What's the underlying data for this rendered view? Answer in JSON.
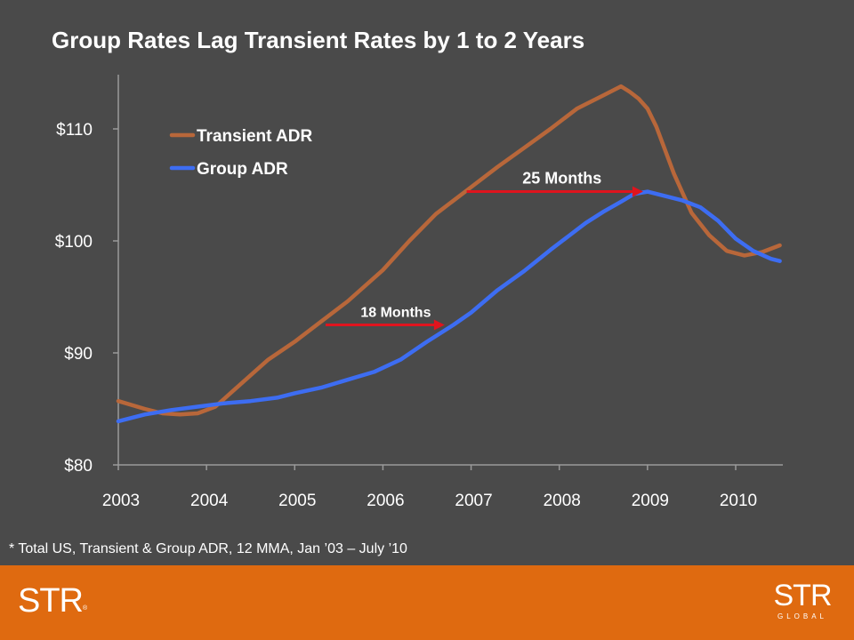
{
  "page": {
    "footnote": "* Total US, Transient & Group ADR, 12 MMA, Jan ’03 – July ’10"
  },
  "colors": {
    "background": "#4a4a4a",
    "footer": "#df6a10",
    "transient": "#b8673a",
    "group": "#3d6df2",
    "arrow": "#e0141e"
  },
  "chart_data": {
    "type": "line",
    "title": "Group Rates Lag Transient Rates by 1 to 2 Years",
    "ylim": [
      80,
      115
    ],
    "xlim": [
      2003,
      2010.55
    ],
    "y_ticks": [
      80,
      90,
      100,
      110
    ],
    "y_tick_labels": [
      "$80",
      "$90",
      "$100",
      "$110"
    ],
    "x_ticks": [
      2003,
      2004,
      2005,
      2006,
      2007,
      2008,
      2009,
      2010
    ],
    "x_tick_labels": [
      "2003",
      "2004",
      "2005",
      "2006",
      "2007",
      "2008",
      "2009",
      "2010"
    ],
    "legend_position": "top-left",
    "grid": false,
    "series": [
      {
        "name": "Transient ADR",
        "color": "#b8673a",
        "x": [
          2003.0,
          2003.3,
          2003.5,
          2003.7,
          2003.9,
          2004.1,
          2004.3,
          2004.5,
          2004.7,
          2005.0,
          2005.3,
          2005.6,
          2006.0,
          2006.3,
          2006.6,
          2007.0,
          2007.3,
          2007.6,
          2007.9,
          2008.2,
          2008.5,
          2008.7,
          2008.8,
          2008.9,
          2009.0,
          2009.1,
          2009.3,
          2009.5,
          2009.7,
          2009.9,
          2010.1,
          2010.3,
          2010.5
        ],
        "values": [
          85.7,
          85.0,
          84.6,
          84.5,
          84.6,
          85.2,
          86.6,
          88.0,
          89.4,
          91.0,
          92.8,
          94.6,
          97.4,
          100.0,
          102.4,
          104.8,
          106.6,
          108.3,
          110.0,
          111.8,
          113.0,
          113.8,
          113.3,
          112.7,
          111.8,
          110.2,
          106.0,
          102.5,
          100.5,
          99.1,
          98.7,
          99.0,
          99.6
        ]
      },
      {
        "name": "Group ADR",
        "color": "#3d6df2",
        "x": [
          2003.0,
          2003.3,
          2003.6,
          2003.9,
          2004.2,
          2004.5,
          2004.8,
          2005.0,
          2005.3,
          2005.6,
          2005.9,
          2006.2,
          2006.5,
          2006.8,
          2007.0,
          2007.3,
          2007.6,
          2007.9,
          2008.1,
          2008.3,
          2008.5,
          2008.7,
          2008.85,
          2009.0,
          2009.2,
          2009.4,
          2009.6,
          2009.8,
          2010.0,
          2010.2,
          2010.4,
          2010.5
        ],
        "values": [
          83.9,
          84.5,
          84.9,
          85.2,
          85.5,
          85.7,
          86.0,
          86.4,
          86.9,
          87.6,
          88.3,
          89.4,
          91.0,
          92.5,
          93.6,
          95.6,
          97.3,
          99.2,
          100.4,
          101.6,
          102.6,
          103.5,
          104.2,
          104.4,
          104.0,
          103.6,
          103.0,
          101.8,
          100.2,
          99.1,
          98.4,
          98.2
        ]
      }
    ],
    "annotations": [
      {
        "label": "18 Months",
        "x_start": 2005.35,
        "x_end": 2006.7,
        "y": 92.5
      },
      {
        "label": "25 Months",
        "x_start": 2006.95,
        "x_end": 2008.95,
        "y": 104.4
      }
    ]
  }
}
